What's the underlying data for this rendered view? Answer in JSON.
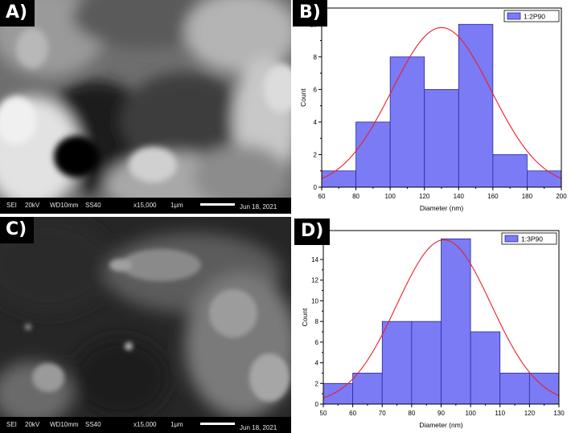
{
  "panels": {
    "a": {
      "tag": "A)",
      "footer": {
        "mode": "SEI",
        "kv": "20kV",
        "wd": "WD10mm",
        "ss": "SS40",
        "mag": "x15,000",
        "scale": "1μm",
        "date": "Jun 18, 2021"
      }
    },
    "b": {
      "tag": "B)"
    },
    "c": {
      "tag": "C)",
      "footer": {
        "mode": "SEI",
        "kv": "20kV",
        "wd": "WD10mm",
        "ss": "SS40",
        "mag": "x15,000",
        "scale": "1μm",
        "date": "Jun 18, 2021"
      }
    },
    "d": {
      "tag": "D)"
    }
  },
  "colors": {
    "bar_fill": "#7b7bf5",
    "bar_stroke": "#2a2a9a",
    "fit_line": "#e8202a",
    "axis": "#000000"
  },
  "chart_data": [
    {
      "type": "bar",
      "panel": "B)",
      "bin_edges": [
        60,
        80,
        100,
        120,
        140,
        160,
        180,
        200
      ],
      "values": [
        1,
        4,
        8,
        6,
        10,
        2,
        1
      ],
      "series": [
        {
          "name": "1:2P90",
          "values": [
            1,
            4,
            8,
            6,
            10,
            2,
            1
          ]
        }
      ],
      "fit": {
        "type": "normal",
        "mean": 130,
        "peak": 9.8,
        "sigma": 29
      },
      "xlabel": "Diameter (nm)",
      "ylabel": "Count",
      "xlim": [
        60,
        200
      ],
      "ylim": [
        0,
        11
      ],
      "xticks": [
        60,
        80,
        100,
        120,
        140,
        160,
        180,
        200
      ],
      "yticks": [
        0,
        2,
        4,
        6,
        8,
        10
      ],
      "legend": "top-right",
      "grid": false
    },
    {
      "type": "bar",
      "panel": "D)",
      "bin_edges": [
        50,
        60,
        70,
        80,
        90,
        100,
        110,
        120,
        130
      ],
      "values": [
        2,
        3,
        8,
        8,
        16,
        7,
        3,
        3
      ],
      "series": [
        {
          "name": "1:3P90",
          "values": [
            2,
            3,
            8,
            8,
            16,
            7,
            3,
            3
          ]
        }
      ],
      "fit": {
        "type": "normal",
        "mean": 91,
        "peak": 15.9,
        "sigma": 16
      },
      "xlabel": "Diameter (nm)",
      "ylabel": "Count",
      "xlim": [
        50,
        130
      ],
      "ylim": [
        0,
        16.8
      ],
      "xticks": [
        50,
        60,
        70,
        80,
        90,
        100,
        110,
        120,
        130
      ],
      "yticks": [
        0,
        2,
        4,
        6,
        8,
        10,
        12,
        14
      ],
      "legend": "top-right",
      "grid": false
    }
  ]
}
